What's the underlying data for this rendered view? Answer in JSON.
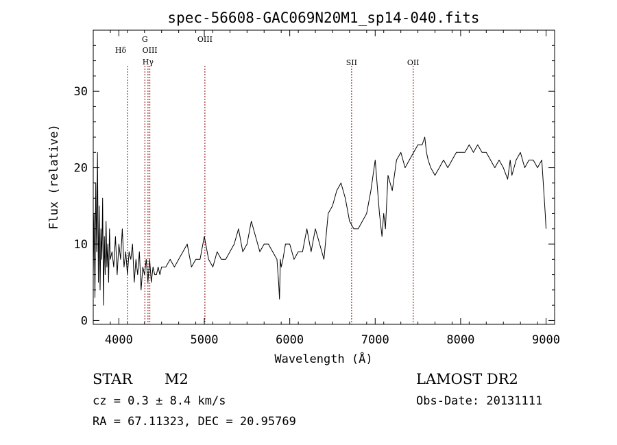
{
  "chart_data": {
    "type": "line",
    "title": "spec-56608-GAC069N20M1_sp14-040.fits",
    "xlabel": "Wavelength (Å)",
    "ylabel": "Flux (relative)",
    "xlim": [
      3700,
      9100
    ],
    "ylim": [
      -0.5,
      38
    ],
    "xticks": [
      4000,
      5000,
      6000,
      7000,
      8000,
      9000
    ],
    "yticks": [
      0,
      10,
      20,
      30
    ],
    "grid": false,
    "line_color": "#000000",
    "marker_color": "#8b0000",
    "series": [
      {
        "x": [
          3700,
          3710,
          3720,
          3730,
          3740,
          3750,
          3760,
          3770,
          3780,
          3790,
          3800,
          3810,
          3820,
          3830,
          3840,
          3850,
          3860,
          3870,
          3880,
          3890,
          3900,
          3920,
          3940,
          3960,
          3980,
          4000,
          4020,
          4040,
          4060,
          4080,
          4100,
          4120,
          4140,
          4160,
          4180,
          4200,
          4220,
          4240,
          4260,
          4280,
          4300,
          4320,
          4340,
          4360,
          4380,
          4400,
          4420,
          4440,
          4460,
          4480,
          4500,
          4550,
          4600,
          4650,
          4700,
          4750,
          4800,
          4850,
          4900,
          4950,
          5000,
          5050,
          5100,
          5150,
          5200,
          5250,
          5300,
          5350,
          5400,
          5450,
          5500,
          5550,
          5600,
          5650,
          5700,
          5750,
          5800,
          5850,
          5870,
          5880,
          5890,
          5900,
          5920,
          5950,
          6000,
          6050,
          6100,
          6150,
          6200,
          6250,
          6300,
          6350,
          6400,
          6450,
          6500,
          6550,
          6600,
          6650,
          6700,
          6750,
          6800,
          6850,
          6900,
          6950,
          7000,
          7050,
          7080,
          7100,
          7120,
          7150,
          7200,
          7250,
          7300,
          7350,
          7400,
          7450,
          7500,
          7550,
          7580,
          7600,
          7620,
          7650,
          7700,
          7750,
          7800,
          7850,
          7900,
          7950,
          8000,
          8050,
          8100,
          8150,
          8200,
          8250,
          8300,
          8350,
          8400,
          8450,
          8500,
          8550,
          8580,
          8600,
          8650,
          8700,
          8750,
          8800,
          8850,
          8900,
          8950,
          8990,
          9000
        ],
        "y": [
          6,
          14,
          3,
          18,
          9,
          22,
          5,
          15,
          4,
          12,
          8,
          16,
          2,
          11,
          6,
          13,
          7,
          10,
          5,
          12,
          8,
          9,
          7,
          11,
          6,
          10,
          8,
          12,
          7,
          9,
          6,
          9,
          8,
          10,
          5,
          8,
          6,
          9,
          4,
          7,
          6,
          8,
          5,
          8,
          5,
          7,
          6,
          6,
          7,
          6,
          7,
          7,
          8,
          7,
          8,
          9,
          10,
          7,
          8,
          8,
          11,
          8,
          7,
          9,
          8,
          8,
          9,
          10,
          12,
          9,
          10,
          13,
          11,
          9,
          10,
          10,
          9,
          8,
          5,
          2.8,
          8,
          7,
          8,
          10,
          10,
          8,
          9,
          9,
          12,
          9,
          12,
          10,
          8,
          14,
          15,
          17,
          18,
          16,
          13,
          12,
          12,
          13,
          14,
          17,
          21,
          14,
          11,
          14,
          12,
          19,
          17,
          21,
          22,
          20,
          21,
          22,
          23,
          23,
          24,
          22,
          21,
          20,
          19,
          20,
          21,
          20,
          21,
          22,
          22,
          22,
          23,
          22,
          23,
          22,
          22,
          21,
          20,
          21,
          20,
          18.5,
          21,
          19,
          21,
          22,
          20,
          21,
          21,
          20,
          21,
          14,
          12
        ]
      }
    ],
    "line_markers": [
      {
        "label": "Hδ",
        "x": 4102
      },
      {
        "label": "G",
        "x": 4304
      },
      {
        "label": "OIII",
        "x": 4363
      },
      {
        "label": "Hγ",
        "x": 4341
      },
      {
        "label": "OIII",
        "x": 5007
      },
      {
        "label": "SII",
        "x": 6724
      },
      {
        "label": "OII",
        "x": 7445
      }
    ]
  },
  "footer": {
    "class_label": "STAR",
    "subclass_label": "M2",
    "redshift_text": "cz = 0.3 ± 8.4 km/s",
    "coords_text": "RA =  67.11323, DEC =  20.95769",
    "survey_label": "LAMOST DR2",
    "obs_date_text": "Obs-Date: 20131111"
  }
}
